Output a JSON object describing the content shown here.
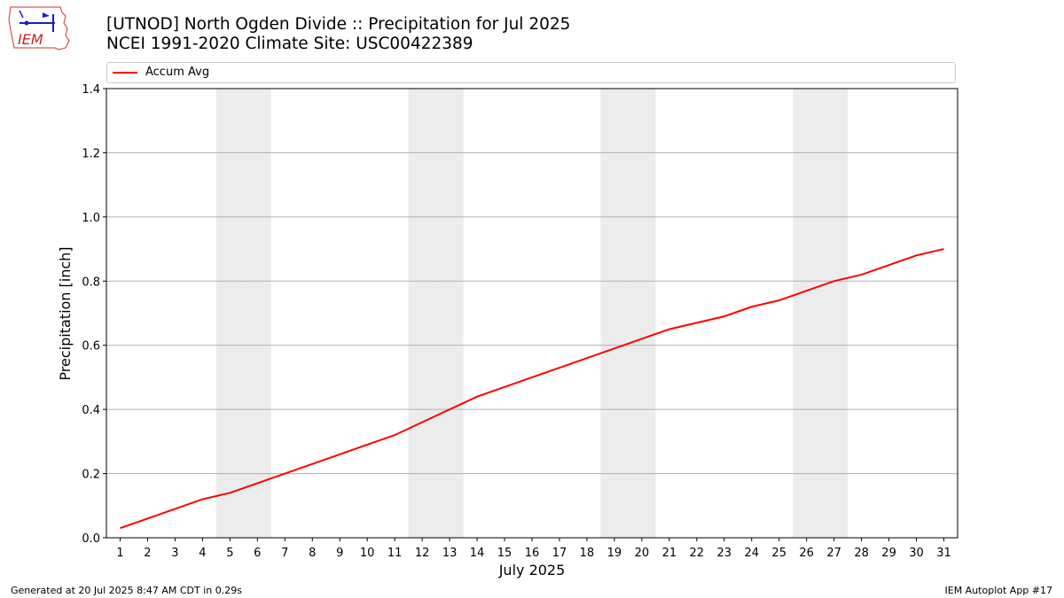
{
  "header": {
    "title_line1": "[UTNOD] North Ogden Divide  :: Precipitation for Jul 2025",
    "title_line2": "NCEI 1991-2020 Climate Site: USC00422389",
    "logo_text": "IEM"
  },
  "footer": {
    "generated": "Generated at 20 Jul 2025 8:47 AM CDT in 0.29s",
    "app": "IEM Autoplot App #17"
  },
  "colors": {
    "series": "#ff0000",
    "weekend_shade": "#ececec",
    "grid": "#b0b0b0"
  },
  "chart_data": {
    "type": "line",
    "xlabel": "July 2025",
    "ylabel": "Precipitation [inch]",
    "ylim": [
      0,
      1.4
    ],
    "yticks": [
      "0.0",
      "0.2",
      "0.4",
      "0.6",
      "0.8",
      "1.0",
      "1.2",
      "1.4"
    ],
    "x": [
      1,
      2,
      3,
      4,
      5,
      6,
      7,
      8,
      9,
      10,
      11,
      12,
      13,
      14,
      15,
      16,
      17,
      18,
      19,
      20,
      21,
      22,
      23,
      24,
      25,
      26,
      27,
      28,
      29,
      30,
      31
    ],
    "series": [
      {
        "name": "Accum Avg",
        "color": "#ff0000",
        "values": [
          0.03,
          0.06,
          0.09,
          0.12,
          0.14,
          0.17,
          0.2,
          0.23,
          0.26,
          0.29,
          0.32,
          0.36,
          0.4,
          0.44,
          0.47,
          0.5,
          0.53,
          0.56,
          0.59,
          0.62,
          0.65,
          0.67,
          0.69,
          0.72,
          0.74,
          0.77,
          0.8,
          0.82,
          0.85,
          0.88,
          0.9
        ]
      }
    ],
    "weekend_days": [
      5,
      6,
      12,
      13,
      19,
      20,
      26,
      27
    ],
    "grid": "horizontal",
    "legend_position": "top"
  }
}
